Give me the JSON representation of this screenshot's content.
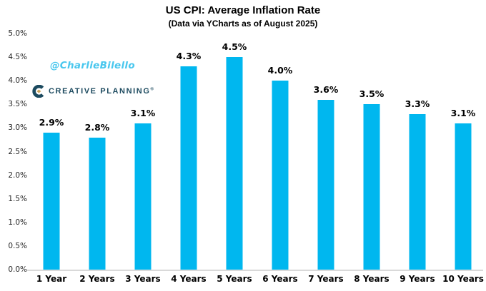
{
  "header": {
    "title": "US CPI: Average Inflation Rate",
    "subtitle": "(Data via YCharts as of August 2025)"
  },
  "watermark": {
    "handle": "@CharlieBilello",
    "color": "#49c7ee"
  },
  "logo": {
    "text": "CREATIVE PLANNING",
    "trademark": "®",
    "text_color": "#1c4a5f",
    "mark_colors": {
      "navy": "#1c4a5f",
      "gold": "#c9a158"
    },
    "icon": "creative-planning-c-mark"
  },
  "chart_data": {
    "type": "bar",
    "title": "US CPI: Average Inflation Rate",
    "subtitle": "(Data via YCharts as of August 2025)",
    "categories": [
      "1 Year",
      "2 Years",
      "3 Years",
      "4 Years",
      "5 Years",
      "6 Years",
      "7 Years",
      "8 Years",
      "9 Years",
      "10 Years"
    ],
    "values": [
      2.9,
      2.8,
      3.1,
      4.3,
      4.5,
      4.0,
      3.6,
      3.5,
      3.3,
      3.1
    ],
    "data_labels": [
      "2.9%",
      "2.8%",
      "3.1%",
      "4.3%",
      "4.5%",
      "4.0%",
      "3.6%",
      "3.5%",
      "3.3%",
      "3.1%"
    ],
    "xlabel": "",
    "ylabel": "",
    "ylim": [
      0,
      5
    ],
    "ytick_labels": [
      "5.0%",
      "4.5%",
      "4.0%",
      "3.5%",
      "3.0%",
      "2.5%",
      "2.0%",
      "1.5%",
      "1.0%",
      "0.5%",
      "0.0%"
    ],
    "grid": false,
    "legend": false,
    "bar_color": "#00b7ef",
    "axis_line_color": "#d9d9d9"
  }
}
